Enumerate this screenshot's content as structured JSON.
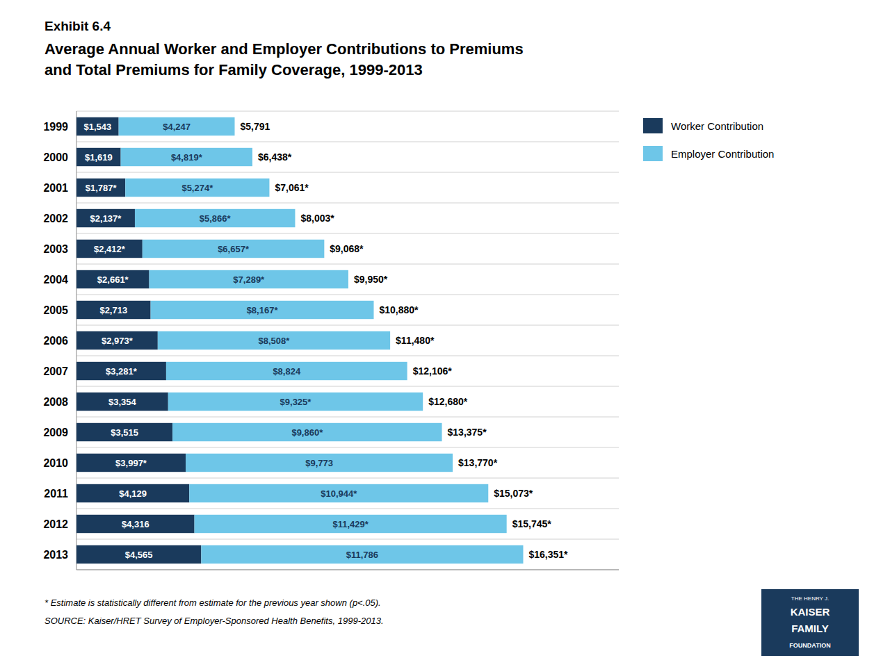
{
  "chart_data": {
    "type": "bar",
    "orientation": "horizontal",
    "stacked": true,
    "data_labels": true,
    "grid": true,
    "legend": "right",
    "tick_labels": "y",
    "title": "Exhibit 6.4",
    "subtitle": [
      "Average Annual Worker and Employer Contributions to Premiums",
      "and Total Premiums for Family Coverage, 1999-2013"
    ],
    "notes": [
      "* Estimate is statistically different from estimate for the previous year shown (p<.05).",
      "SOURCE:  Kaiser/HRET Survey of Employer-Sponsored Health Benefits, 1999-2013."
    ],
    "logo_text": [
      "THE HENRY J.",
      "KAISER",
      "FAMILY",
      "FOUNDATION"
    ],
    "categories": [
      "1999",
      "2000",
      "2001",
      "2002",
      "2003",
      "2004",
      "2005",
      "2006",
      "2007",
      "2008",
      "2009",
      "2010",
      "2011",
      "2012",
      "2013"
    ],
    "series": [
      {
        "name": "Worker Contribution",
        "color": "#1a3a5c",
        "values": [
          1543,
          1619,
          1787,
          2137,
          2412,
          2661,
          2713,
          2973,
          3281,
          3354,
          3515,
          3997,
          4129,
          4316,
          4565
        ],
        "value_labels": [
          "$1,543",
          "$1,619",
          "$1,787*",
          "$2,137*",
          "$2,412*",
          "$2,661*",
          "$2,713",
          "$2,973*",
          "$3,281*",
          "$3,354",
          "$3,515",
          "$3,997*",
          "$4,129",
          "$4,316",
          "$4,565"
        ]
      },
      {
        "name": "Employer Contribution",
        "color": "#6ec6e8",
        "values": [
          4247,
          4819,
          5274,
          5866,
          6657,
          7289,
          8167,
          8508,
          8824,
          9325,
          9860,
          9773,
          10944,
          11429,
          11786
        ],
        "value_labels": [
          "$4,247",
          "$4,819*",
          "$5,274*",
          "$5,866*",
          "$6,657*",
          "$7,289*",
          "$8,167*",
          "$8,508*",
          "$8,824",
          "$9,325*",
          "$9,860*",
          "$9,773",
          "$10,944*",
          "$11,429*",
          "$11,786"
        ]
      }
    ],
    "totals": [
      5791,
      6438,
      7061,
      8003,
      9068,
      9950,
      10880,
      11480,
      12106,
      12680,
      13375,
      13770,
      15073,
      15745,
      16351
    ],
    "total_labels": [
      "$5,791",
      "$6,438*",
      "$7,061*",
      "$8,003*",
      "$9,068*",
      "$9,950*",
      "$10,880*",
      "$11,480*",
      "$12,106*",
      "$12,680*",
      "$13,375*",
      "$13,770*",
      "$15,073*",
      "$15,745*",
      "$16,351*"
    ],
    "xlim": [
      0,
      19851
    ]
  }
}
